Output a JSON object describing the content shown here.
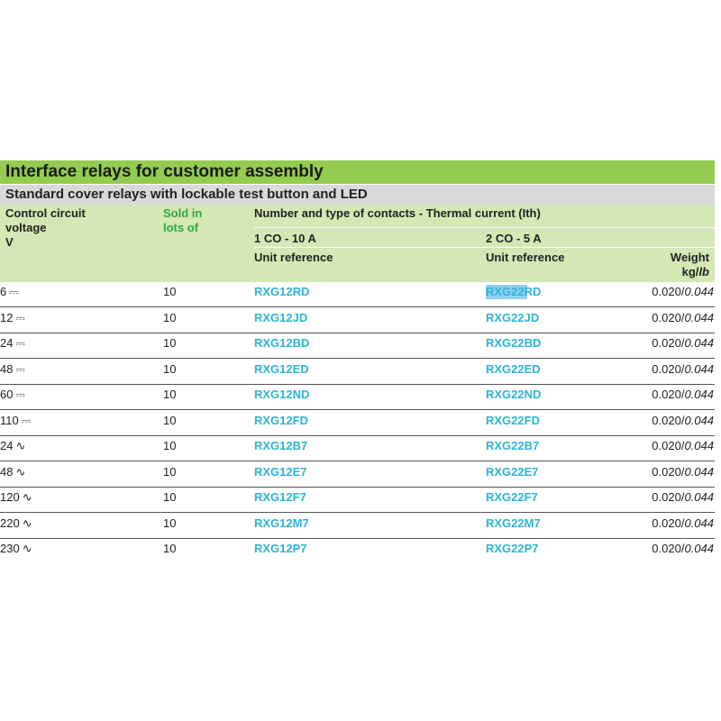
{
  "header": {
    "title": "Interface relays for customer assembly",
    "subtitle": "Standard cover relays with lockable test button and LED"
  },
  "table": {
    "columns": {
      "voltage": "Control circuit voltage",
      "voltage_unit": "V",
      "lots": "Sold in lots of",
      "contacts": "Number and type of contacts - Thermal current (Ith)",
      "contact_1": "1 CO - 10 A",
      "contact_2": "2 CO - 5 A",
      "ref_1": "Unit reference",
      "ref_2": "Unit reference",
      "weight": "Weight",
      "weight_kg": "kg/",
      "weight_lb": "lb"
    },
    "rows": [
      {
        "voltage": "6",
        "current": "⎓",
        "lots": 10,
        "ref_1": "RXG12RD",
        "ref_2": "RXG22RD",
        "weight_kg": "0.020/",
        "weight_lb": "0.044"
      },
      {
        "voltage": "12",
        "current": "⎓",
        "lots": 10,
        "ref_1": "RXG12JD",
        "ref_2": "RXG22JD",
        "weight_kg": "0.020/",
        "weight_lb": "0.044"
      },
      {
        "voltage": "24",
        "current": "⎓",
        "lots": 10,
        "ref_1": "RXG12BD",
        "ref_2": "RXG22BD",
        "weight_kg": "0.020/",
        "weight_lb": "0.044"
      },
      {
        "voltage": "48",
        "current": "⎓",
        "lots": 10,
        "ref_1": "RXG12ED",
        "ref_2": "RXG22ED",
        "weight_kg": "0.020/",
        "weight_lb": "0.044"
      },
      {
        "voltage": "60",
        "current": "⎓",
        "lots": 10,
        "ref_1": "RXG12ND",
        "ref_2": "RXG22ND",
        "weight_kg": "0.020/",
        "weight_lb": "0.044"
      },
      {
        "voltage": "110",
        "current": "⎓",
        "lots": 10,
        "ref_1": "RXG12FD",
        "ref_2": "RXG22FD",
        "weight_kg": "0.020/",
        "weight_lb": "0.044"
      },
      {
        "voltage": "24",
        "current": "∿",
        "lots": 10,
        "ref_1": "RXG12B7",
        "ref_2": "RXG22B7",
        "weight_kg": "0.020/",
        "weight_lb": "0.044"
      },
      {
        "voltage": "48",
        "current": "∿",
        "lots": 10,
        "ref_1": "RXG12E7",
        "ref_2": "RXG22E7",
        "weight_kg": "0.020/",
        "weight_lb": "0.044"
      },
      {
        "voltage": "120",
        "current": "∿",
        "lots": 10,
        "ref_1": "RXG12F7",
        "ref_2": "RXG22F7",
        "weight_kg": "0.020/",
        "weight_lb": "0.044"
      },
      {
        "voltage": "220",
        "current": "∿",
        "lots": 10,
        "ref_1": "RXG12M7",
        "ref_2": "RXG22M7",
        "weight_kg": "0.020/",
        "weight_lb": "0.044"
      },
      {
        "voltage": "230",
        "current": "∿",
        "lots": 10,
        "ref_1": "RXG12P7",
        "ref_2": "RXG22P7",
        "weight_kg": "0.020/",
        "weight_lb": "0.044"
      }
    ]
  }
}
